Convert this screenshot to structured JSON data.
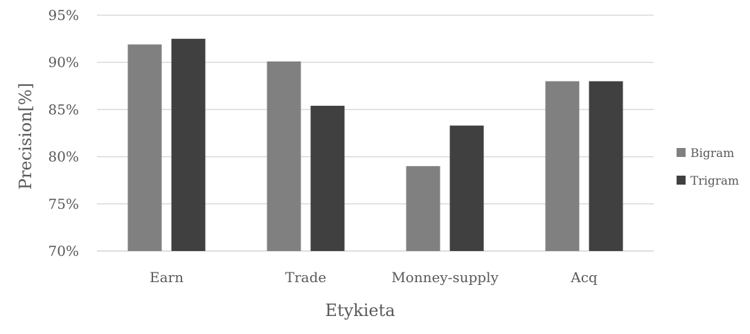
{
  "chart_data": {
    "type": "bar",
    "title": "",
    "xlabel": "Etykieta",
    "ylabel": "Precision[%]",
    "categories": [
      "Earn",
      "Trade",
      "Monney-supply",
      "Acq"
    ],
    "series": [
      {
        "name": "Bigram",
        "color": "#808080",
        "values": [
          91.9,
          90.1,
          79.0,
          88.0
        ]
      },
      {
        "name": "Trigram",
        "color": "#404040",
        "values": [
          92.5,
          85.4,
          83.3,
          88.0
        ]
      }
    ],
    "ylim": [
      70,
      95
    ],
    "yticks": [
      "70%",
      "75%",
      "80%",
      "85%",
      "90%",
      "95%"
    ],
    "ytick_values": [
      70,
      75,
      80,
      85,
      90,
      95
    ],
    "grid": true,
    "legend_position": "right"
  }
}
